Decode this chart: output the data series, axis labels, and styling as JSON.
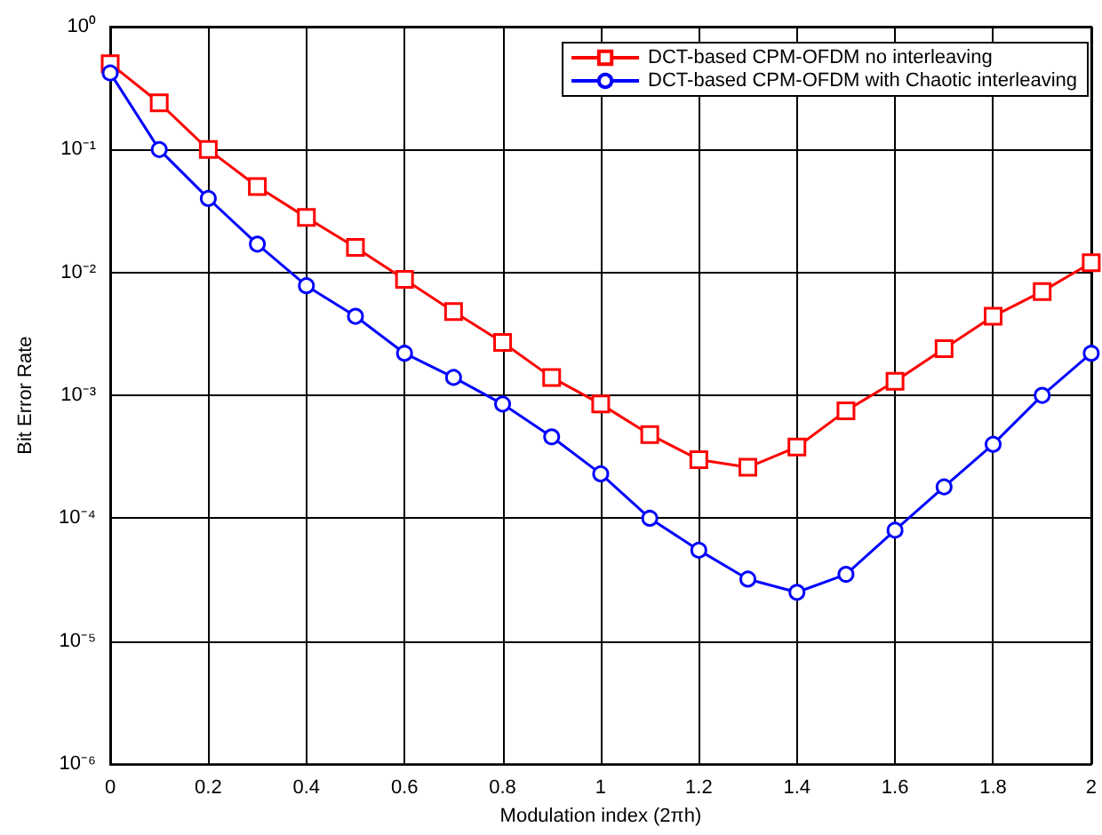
{
  "chart_data": {
    "type": "line",
    "xlabel": "Modulation index (2πh)",
    "ylabel": "Bit Error Rate",
    "x": [
      0,
      0.1,
      0.2,
      0.3,
      0.4,
      0.5,
      0.6,
      0.7,
      0.8,
      0.9,
      1,
      1.1,
      1.2,
      1.3,
      1.4,
      1.5,
      1.6,
      1.7,
      1.8,
      1.9,
      2
    ],
    "series": [
      {
        "name": "DCT-based CPM-OFDM no interleaving",
        "color": "#ff0000",
        "marker": "square",
        "values": [
          0.5,
          0.24,
          0.1,
          0.05,
          0.028,
          0.016,
          0.0088,
          0.0048,
          0.0027,
          0.0014,
          0.00085,
          0.00048,
          0.0003,
          0.00026,
          0.00038,
          0.00075,
          0.0013,
          0.0024,
          0.0044,
          0.007,
          0.012
        ]
      },
      {
        "name": "DCT-based CPM-OFDM with Chaotic interleaving",
        "color": "#0000ff",
        "marker": "circle",
        "values": [
          0.42,
          0.1,
          0.04,
          0.017,
          0.0078,
          0.0044,
          0.0022,
          0.0014,
          0.00085,
          0.00046,
          0.00023,
          0.0001,
          5.5e-05,
          3.2e-05,
          2.5e-05,
          3.5e-05,
          8e-05,
          0.00018,
          0.0004,
          0.001,
          0.0022
        ]
      }
    ],
    "log": "y",
    "xlim": [
      0,
      2
    ],
    "xticks": [
      0,
      0.2,
      0.4,
      0.6,
      0.8,
      1,
      1.2,
      1.4,
      1.6,
      1.8,
      2
    ],
    "ylim": [
      1e-06,
      1
    ],
    "yticks": [
      {
        "value": 1e-06,
        "label": "10⁻⁶"
      },
      {
        "value": 1e-05,
        "label": "10⁻⁵"
      },
      {
        "value": 0.0001,
        "label": "10⁻⁴"
      },
      {
        "value": 0.001,
        "label": "10⁻³"
      },
      {
        "value": 0.01,
        "label": "10⁻²"
      },
      {
        "value": 0.1,
        "label": "10⁻¹"
      },
      {
        "value": 1,
        "label": "10⁰"
      }
    ],
    "grid": true,
    "legend": "top right",
    "line_style": "solid"
  }
}
